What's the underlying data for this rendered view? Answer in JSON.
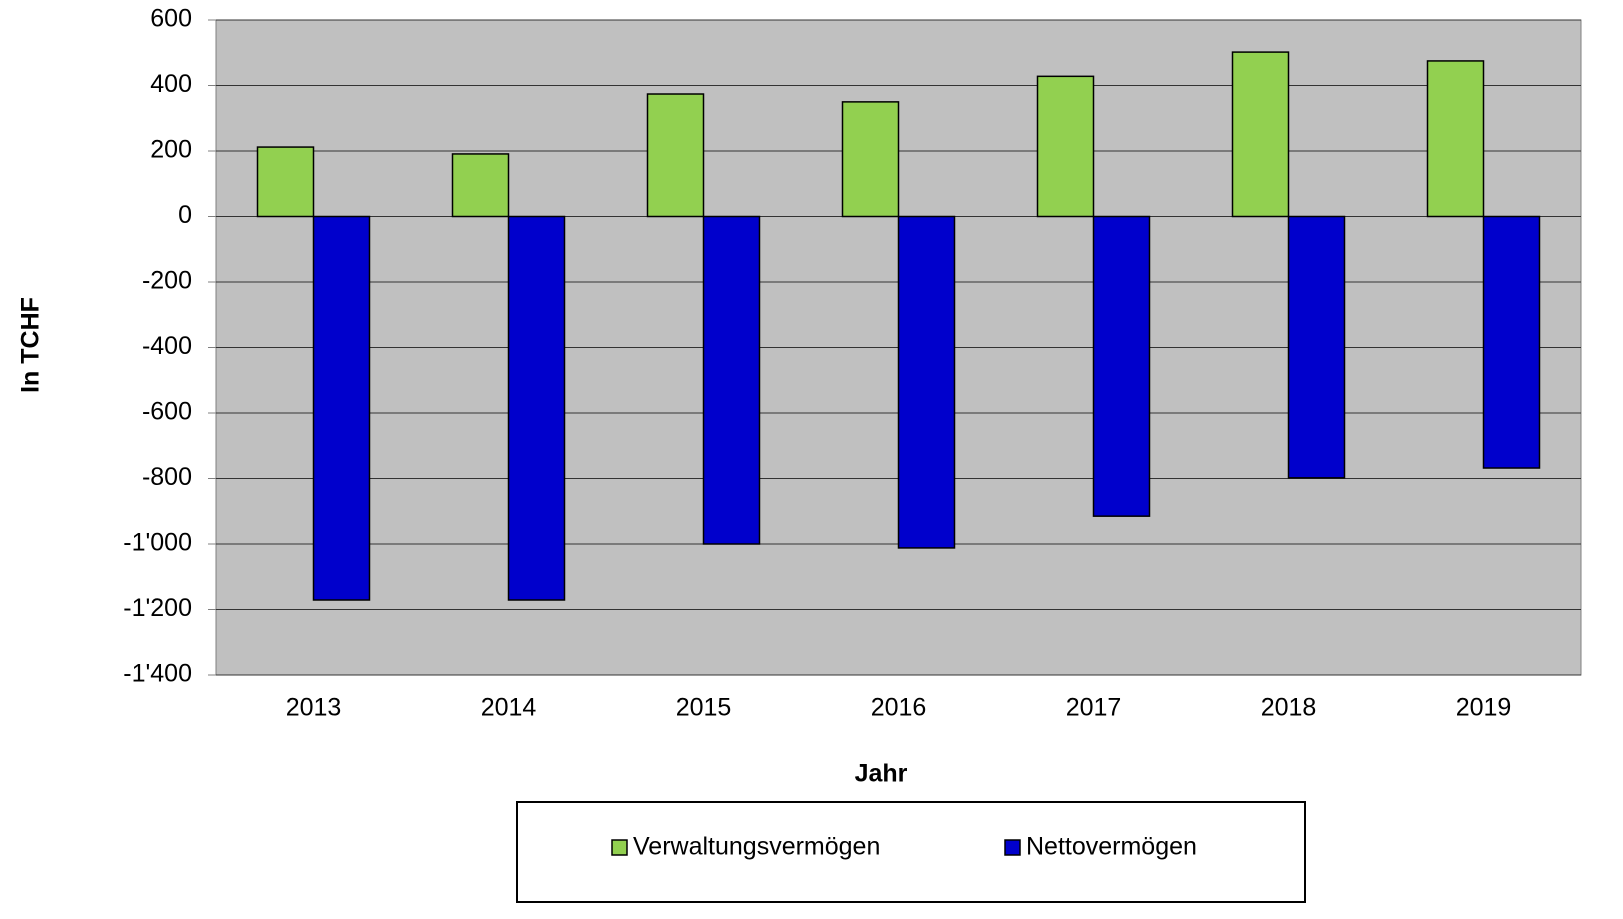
{
  "chart_data": {
    "type": "bar",
    "x_label": "Jahr",
    "y_label": "In TCHF",
    "categories": [
      "2013",
      "2014",
      "2015",
      "2016",
      "2017",
      "2018",
      "2019"
    ],
    "series": [
      {
        "name": "Verwaltungsvermögen",
        "color": "#92d050",
        "values": [
          212,
          191,
          374,
          350,
          428,
          502,
          475
        ]
      },
      {
        "name": "Nettovermögen",
        "color": "#0000cc",
        "values": [
          -1171,
          -1171,
          -1000,
          -1012,
          -915,
          -798,
          -768
        ]
      }
    ],
    "ylim": [
      -1400,
      600
    ],
    "yticks": [
      {
        "value": -1400,
        "label": "-1'400"
      },
      {
        "value": -1200,
        "label": "-1'200"
      },
      {
        "value": -1000,
        "label": "-1'000"
      },
      -800,
      -600,
      -400,
      -200,
      0,
      200,
      400,
      600
    ],
    "grid": true,
    "legend": "bottom"
  }
}
